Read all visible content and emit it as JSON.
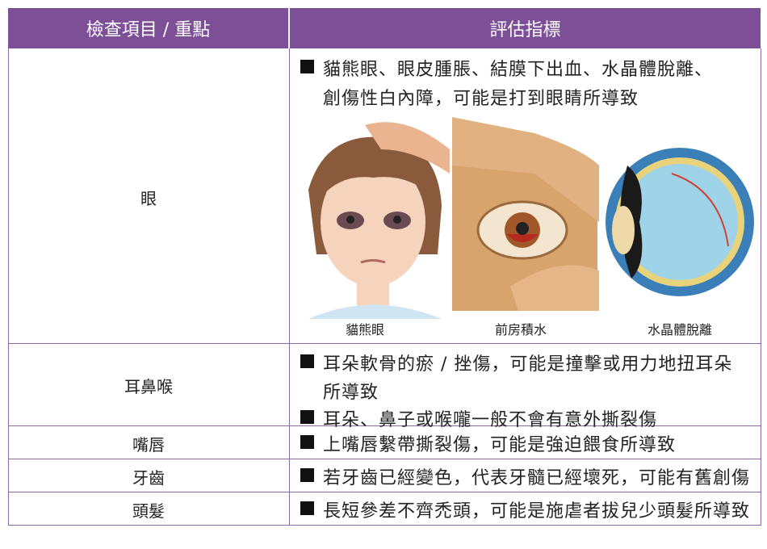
{
  "table": {
    "headers": [
      "檢查項目 / 重點",
      "評估指標"
    ],
    "rows": [
      {
        "item": "眼",
        "indicators": [
          {
            "lines": [
              "貓熊眼、眼皮腫脹、結膜下出血、水晶體脫離、",
              "創傷性白內障，可能是打到眼睛所導致"
            ]
          }
        ],
        "figures": [
          "貓熊眼",
          "前房積水",
          "水晶體脫離"
        ]
      },
      {
        "item": "耳鼻喉",
        "indicators": [
          {
            "lines": [
              "耳朵軟骨的瘀 / 挫傷，可能是撞擊或用力地扭耳朵",
              "所導致"
            ]
          },
          {
            "lines": [
              "耳朵、鼻子或喉嚨一般不會有意外撕裂傷"
            ]
          }
        ]
      },
      {
        "item": "嘴唇",
        "indicators": [
          {
            "lines": [
              "上嘴唇繫帶撕裂傷，可能是強迫餵食所導致"
            ]
          }
        ]
      },
      {
        "item": "牙齒",
        "indicators": [
          {
            "lines": [
              "若牙齒已經變色，代表牙髓已經壞死，可能有舊創傷"
            ]
          }
        ]
      },
      {
        "item": "頭髮",
        "indicators": [
          {
            "lines": [
              "長短參差不齊禿頭，可能是施虐者拔兒少頭髮所導致"
            ]
          }
        ]
      }
    ]
  }
}
